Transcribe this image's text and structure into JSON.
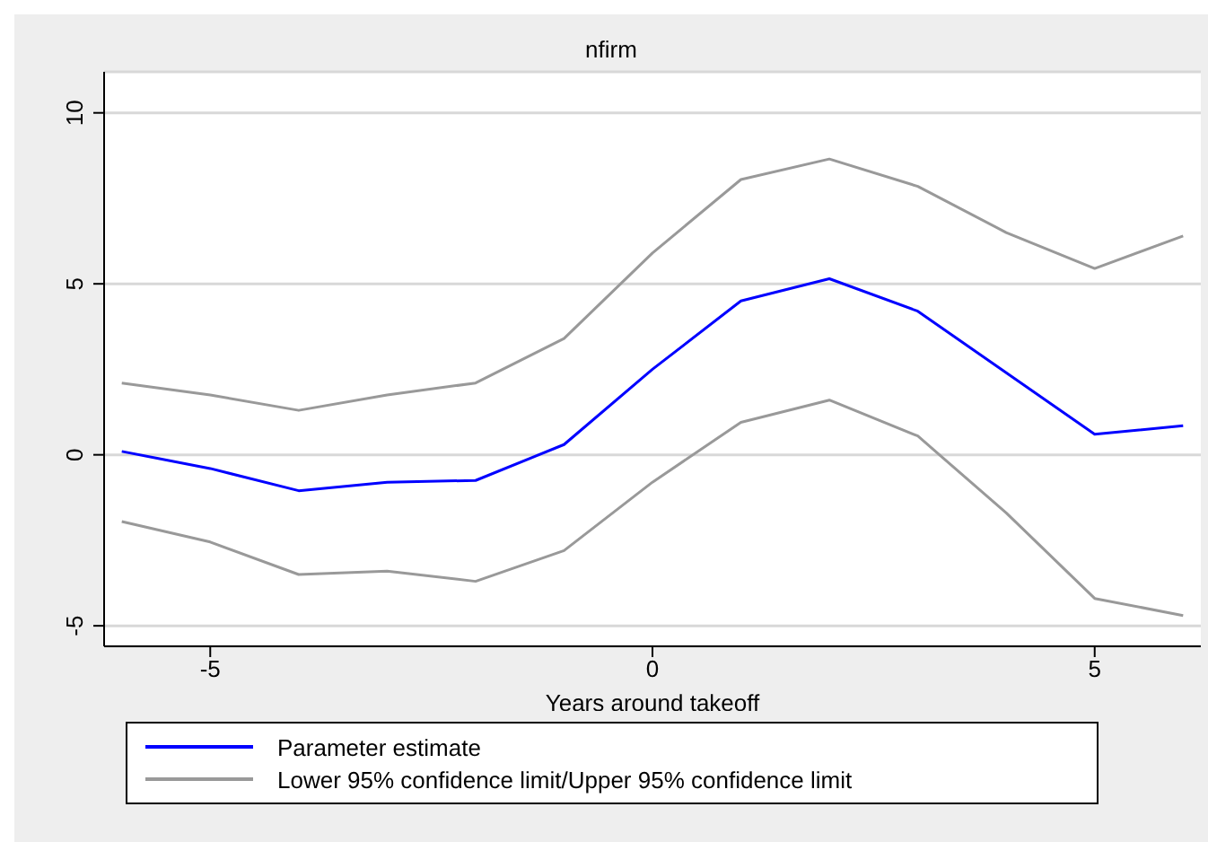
{
  "chart_data": {
    "type": "line",
    "title": "nfirm",
    "xlabel": "Years around takeoff",
    "x": [
      -6,
      -5,
      -4,
      -3,
      -2,
      -1,
      0,
      1,
      2,
      3,
      4,
      5,
      6
    ],
    "series": [
      {
        "name": "Parameter estimate",
        "color": "#0000ff",
        "values": [
          0.1,
          -0.4,
          -1.05,
          -0.8,
          -0.75,
          0.3,
          2.5,
          4.5,
          5.15,
          4.2,
          2.4,
          0.6,
          0.85
        ]
      },
      {
        "name": "Lower 95% confidence limit/Upper 95% confidence limit",
        "color": "#999999",
        "values": [
          -1.95,
          -2.55,
          -3.5,
          -3.4,
          -3.7,
          -2.8,
          -0.8,
          0.95,
          1.6,
          0.55,
          -1.7,
          -4.2,
          -4.7
        ]
      },
      {
        "color": "#999999",
        "values": [
          2.1,
          1.75,
          1.3,
          1.75,
          2.1,
          3.4,
          5.9,
          8.05,
          8.65,
          7.85,
          6.5,
          5.45,
          6.4
        ]
      }
    ],
    "xlim": [
      -6.2,
      6.2
    ],
    "xticks": [
      -5,
      0,
      5
    ],
    "ylim": [
      -5.6,
      11.2
    ],
    "yticks": [
      -5,
      0,
      5,
      10
    ],
    "grid": "y",
    "legend": "bottom",
    "marker": "none",
    "line_style": "solid"
  }
}
